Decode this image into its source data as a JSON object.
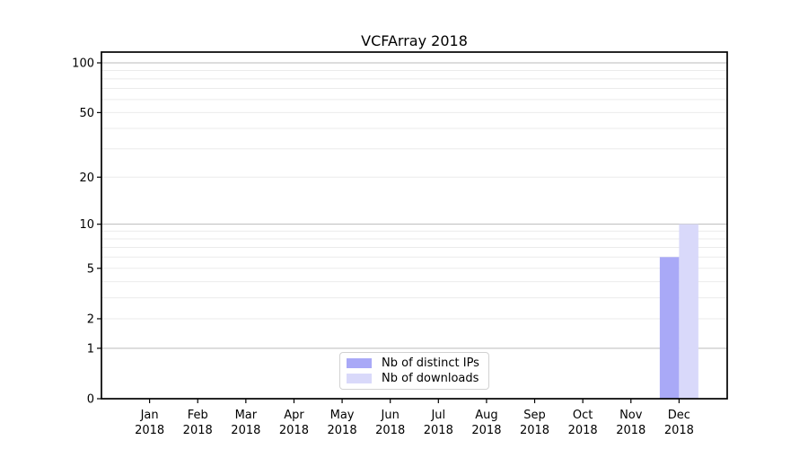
{
  "figure": {
    "background": "#ffffff"
  },
  "chart_data": {
    "type": "bar",
    "title": "VCFArray 2018",
    "categories": [
      "Jan",
      "Feb",
      "Mar",
      "Apr",
      "May",
      "Jun",
      "Jul",
      "Aug",
      "Sep",
      "Oct",
      "Nov",
      "Dec"
    ],
    "category_year": "2018",
    "series": [
      {
        "name": "Nb of distinct IPs",
        "color": "#a9a9f7",
        "values": [
          0,
          0,
          0,
          0,
          0,
          0,
          0,
          0,
          0,
          0,
          0,
          6
        ]
      },
      {
        "name": "Nb of downloads",
        "color": "#d9d9fa",
        "values": [
          0,
          0,
          0,
          0,
          0,
          0,
          0,
          0,
          0,
          0,
          0,
          10
        ]
      }
    ],
    "xlabel": "",
    "ylabel": "",
    "y_scale": "log1p",
    "y_tick_values": [
      0,
      1,
      2,
      5,
      10,
      20,
      50,
      100
    ],
    "y_tick_labels": [
      "0",
      "1",
      "2",
      "5",
      "10",
      "20",
      "50",
      "100"
    ],
    "y_major_gridlines": [
      1,
      10,
      100
    ],
    "y_minor_gridlines": [
      2,
      3,
      4,
      5,
      6,
      7,
      8,
      9,
      20,
      30,
      40,
      50,
      60,
      70,
      80,
      90
    ],
    "ylim": [
      0,
      115
    ],
    "grid": true,
    "legend_position": "lower-center"
  },
  "colors": {
    "axis": "#000000",
    "major_grid": "#bbbbbb",
    "minor_grid": "#ebebeb",
    "tick": "#000000",
    "text": "#000000",
    "legend_border": "#d2d2d2"
  }
}
